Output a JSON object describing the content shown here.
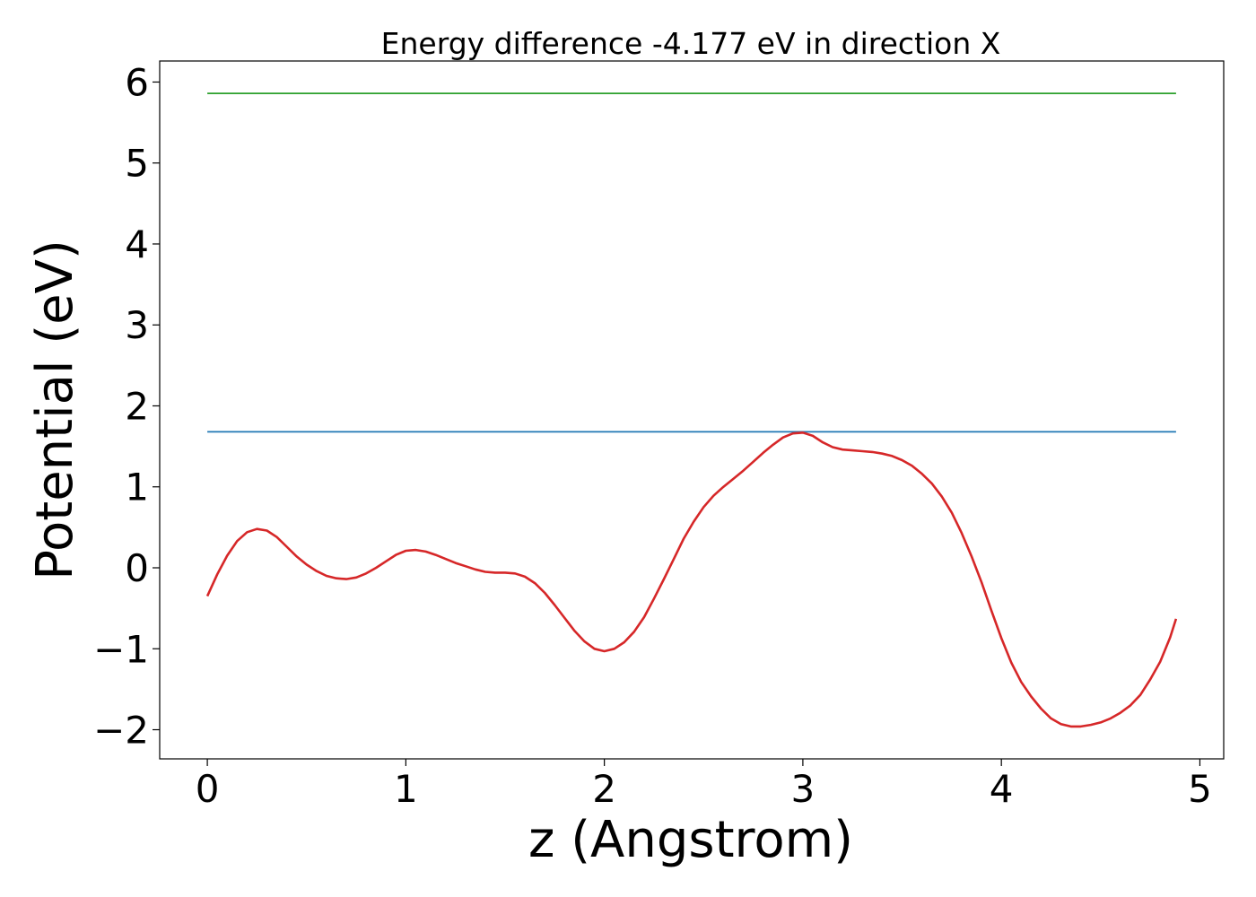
{
  "chart_data": {
    "type": "line",
    "title": "Energy difference -4.177 eV in direction X",
    "xlabel": "z (Angstrom)",
    "ylabel": "Potential (eV)",
    "xlim": [
      -0.24,
      5.12
    ],
    "ylim": [
      -2.36,
      6.26
    ],
    "xticks": [
      0,
      1,
      2,
      3,
      4,
      5
    ],
    "xtick_labels": [
      "0",
      "1",
      "2",
      "3",
      "4",
      "5"
    ],
    "yticks": [
      -2,
      -1,
      0,
      1,
      2,
      3,
      4,
      5,
      6
    ],
    "ytick_labels": [
      "−2",
      "−1",
      "0",
      "1",
      "2",
      "3",
      "4",
      "5",
      "6"
    ],
    "grid": false,
    "series": [
      {
        "color": "#2ca02c",
        "x": [
          0,
          4.88
        ],
        "y": [
          5.86,
          5.86
        ]
      },
      {
        "color": "#1f77b4",
        "x": [
          0,
          4.88
        ],
        "y": [
          1.68,
          1.68
        ]
      },
      {
        "color": "#d62728",
        "x": [
          0,
          0.05,
          0.1,
          0.15,
          0.2,
          0.25,
          0.3,
          0.35,
          0.4,
          0.45,
          0.5,
          0.55,
          0.6,
          0.65,
          0.7,
          0.75,
          0.8,
          0.85,
          0.9,
          0.95,
          1.0,
          1.05,
          1.1,
          1.15,
          1.2,
          1.25,
          1.3,
          1.35,
          1.4,
          1.45,
          1.5,
          1.55,
          1.6,
          1.65,
          1.7,
          1.75,
          1.8,
          1.85,
          1.9,
          1.95,
          2.0,
          2.05,
          2.1,
          2.15,
          2.2,
          2.25,
          2.3,
          2.35,
          2.4,
          2.45,
          2.5,
          2.55,
          2.6,
          2.65,
          2.7,
          2.75,
          2.8,
          2.85,
          2.9,
          2.95,
          3.0,
          3.05,
          3.1,
          3.15,
          3.2,
          3.25,
          3.3,
          3.35,
          3.4,
          3.45,
          3.5,
          3.55,
          3.6,
          3.65,
          3.7,
          3.75,
          3.8,
          3.85,
          3.9,
          3.95,
          4.0,
          4.05,
          4.1,
          4.15,
          4.2,
          4.25,
          4.3,
          4.35,
          4.4,
          4.45,
          4.5,
          4.55,
          4.6,
          4.65,
          4.7,
          4.75,
          4.8,
          4.85,
          4.88
        ],
        "y": [
          -0.35,
          -0.08,
          0.15,
          0.33,
          0.44,
          0.48,
          0.46,
          0.38,
          0.26,
          0.14,
          0.04,
          -0.04,
          -0.1,
          -0.13,
          -0.14,
          -0.12,
          -0.07,
          0.0,
          0.08,
          0.16,
          0.21,
          0.22,
          0.2,
          0.16,
          0.11,
          0.06,
          0.02,
          -0.02,
          -0.05,
          -0.06,
          -0.06,
          -0.07,
          -0.11,
          -0.19,
          -0.31,
          -0.46,
          -0.62,
          -0.78,
          -0.91,
          -1.0,
          -1.03,
          -1.0,
          -0.92,
          -0.79,
          -0.61,
          -0.38,
          -0.14,
          0.11,
          0.36,
          0.57,
          0.75,
          0.89,
          1.0,
          1.1,
          1.2,
          1.31,
          1.42,
          1.52,
          1.61,
          1.66,
          1.67,
          1.63,
          1.55,
          1.49,
          1.46,
          1.45,
          1.44,
          1.43,
          1.41,
          1.38,
          1.33,
          1.26,
          1.16,
          1.04,
          0.88,
          0.68,
          0.43,
          0.14,
          -0.18,
          -0.53,
          -0.87,
          -1.17,
          -1.41,
          -1.59,
          -1.74,
          -1.86,
          -1.93,
          -1.96,
          -1.96,
          -1.94,
          -1.91,
          -1.86,
          -1.79,
          -1.7,
          -1.57,
          -1.38,
          -1.16,
          -0.86,
          -0.63
        ]
      }
    ]
  }
}
